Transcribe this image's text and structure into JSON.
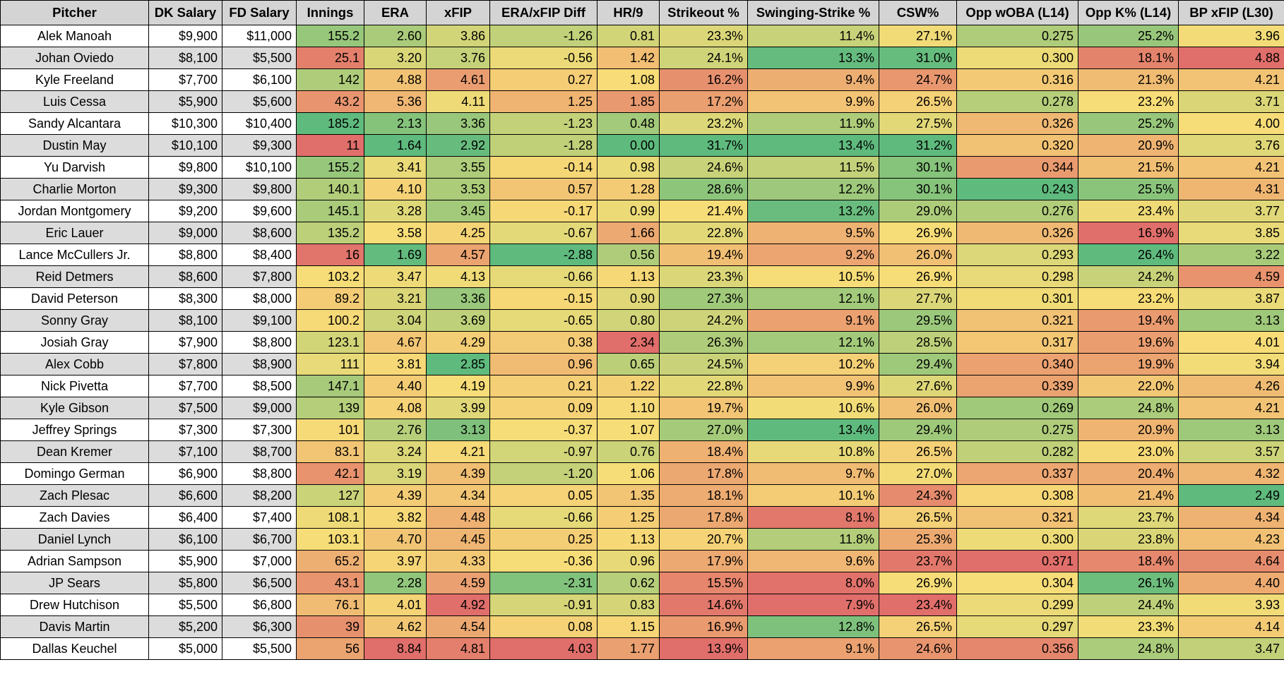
{
  "headers": [
    "Pitcher",
    "DK Salary",
    "FD Salary",
    "Innings",
    "ERA",
    "xFIP",
    "ERA/xFIP Diff",
    "HR/9",
    "Strikeout %",
    "Swinging-Strike %",
    "CSW%",
    "Opp wOBA (L14)",
    "Opp K% (L14)",
    "BP xFIP (L30)"
  ],
  "rows": [
    [
      "Alek Manoah",
      "$9,900",
      "$11,000",
      "155.2",
      "2.60",
      "3.86",
      "-1.26",
      "0.81",
      "23.3%",
      "11.4%",
      "27.1%",
      "0.275",
      "25.2%",
      "3.96"
    ],
    [
      "Johan Oviedo",
      "$8,100",
      "$5,500",
      "25.1",
      "3.20",
      "3.76",
      "-0.56",
      "1.42",
      "24.1%",
      "13.3%",
      "31.0%",
      "0.300",
      "18.1%",
      "4.88"
    ],
    [
      "Kyle Freeland",
      "$7,700",
      "$6,100",
      "142",
      "4.88",
      "4.61",
      "0.27",
      "1.08",
      "16.2%",
      "9.4%",
      "24.7%",
      "0.316",
      "21.3%",
      "4.21"
    ],
    [
      "Luis Cessa",
      "$5,900",
      "$5,600",
      "43.2",
      "5.36",
      "4.11",
      "1.25",
      "1.85",
      "17.2%",
      "9.9%",
      "26.5%",
      "0.278",
      "23.2%",
      "3.71"
    ],
    [
      "Sandy Alcantara",
      "$10,300",
      "$10,400",
      "185.2",
      "2.13",
      "3.36",
      "-1.23",
      "0.48",
      "23.2%",
      "11.9%",
      "27.5%",
      "0.326",
      "25.2%",
      "4.00"
    ],
    [
      "Dustin May",
      "$10,100",
      "$9,300",
      "11",
      "1.64",
      "2.92",
      "-1.28",
      "0.00",
      "31.7%",
      "13.4%",
      "31.2%",
      "0.320",
      "20.9%",
      "3.76"
    ],
    [
      "Yu Darvish",
      "$9,800",
      "$10,100",
      "155.2",
      "3.41",
      "3.55",
      "-0.14",
      "0.98",
      "24.6%",
      "11.5%",
      "30.1%",
      "0.344",
      "21.5%",
      "4.21"
    ],
    [
      "Charlie Morton",
      "$9,300",
      "$9,800",
      "140.1",
      "4.10",
      "3.53",
      "0.57",
      "1.28",
      "28.6%",
      "12.2%",
      "30.1%",
      "0.243",
      "25.5%",
      "4.31"
    ],
    [
      "Jordan Montgomery",
      "$9,200",
      "$9,600",
      "145.1",
      "3.28",
      "3.45",
      "-0.17",
      "0.99",
      "21.4%",
      "13.2%",
      "29.0%",
      "0.276",
      "23.4%",
      "3.77"
    ],
    [
      "Eric Lauer",
      "$9,000",
      "$8,600",
      "135.2",
      "3.58",
      "4.25",
      "-0.67",
      "1.66",
      "22.8%",
      "9.5%",
      "26.9%",
      "0.326",
      "16.9%",
      "3.85"
    ],
    [
      "Lance McCullers Jr.",
      "$8,800",
      "$8,400",
      "16",
      "1.69",
      "4.57",
      "-2.88",
      "0.56",
      "19.4%",
      "9.2%",
      "26.0%",
      "0.293",
      "26.4%",
      "3.22"
    ],
    [
      "Reid Detmers",
      "$8,600",
      "$7,800",
      "103.2",
      "3.47",
      "4.13",
      "-0.66",
      "1.13",
      "23.3%",
      "10.5%",
      "26.9%",
      "0.298",
      "24.2%",
      "4.59"
    ],
    [
      "David Peterson",
      "$8,300",
      "$8,000",
      "89.2",
      "3.21",
      "3.36",
      "-0.15",
      "0.90",
      "27.3%",
      "12.1%",
      "27.7%",
      "0.301",
      "23.2%",
      "3.87"
    ],
    [
      "Sonny Gray",
      "$8,100",
      "$9,100",
      "100.2",
      "3.04",
      "3.69",
      "-0.65",
      "0.80",
      "24.2%",
      "9.1%",
      "29.5%",
      "0.321",
      "19.4%",
      "3.13"
    ],
    [
      "Josiah Gray",
      "$7,900",
      "$8,800",
      "123.1",
      "4.67",
      "4.29",
      "0.38",
      "2.34",
      "26.3%",
      "12.1%",
      "28.5%",
      "0.317",
      "19.6%",
      "4.01"
    ],
    [
      "Alex Cobb",
      "$7,800",
      "$8,900",
      "111",
      "3.81",
      "2.85",
      "0.96",
      "0.65",
      "24.5%",
      "10.2%",
      "29.4%",
      "0.340",
      "19.9%",
      "3.94"
    ],
    [
      "Nick Pivetta",
      "$7,700",
      "$8,500",
      "147.1",
      "4.40",
      "4.19",
      "0.21",
      "1.22",
      "22.8%",
      "9.9%",
      "27.6%",
      "0.339",
      "22.0%",
      "4.26"
    ],
    [
      "Kyle Gibson",
      "$7,500",
      "$9,000",
      "139",
      "4.08",
      "3.99",
      "0.09",
      "1.10",
      "19.7%",
      "10.6%",
      "26.0%",
      "0.269",
      "24.8%",
      "4.21"
    ],
    [
      "Jeffrey Springs",
      "$7,300",
      "$7,300",
      "101",
      "2.76",
      "3.13",
      "-0.37",
      "1.07",
      "27.0%",
      "13.4%",
      "29.4%",
      "0.275",
      "20.9%",
      "3.13"
    ],
    [
      "Dean Kremer",
      "$7,100",
      "$8,700",
      "83.1",
      "3.24",
      "4.21",
      "-0.97",
      "0.76",
      "18.4%",
      "10.8%",
      "26.5%",
      "0.282",
      "23.0%",
      "3.57"
    ],
    [
      "Domingo German",
      "$6,900",
      "$8,800",
      "42.1",
      "3.19",
      "4.39",
      "-1.20",
      "1.06",
      "17.8%",
      "9.7%",
      "27.0%",
      "0.337",
      "20.4%",
      "4.32"
    ],
    [
      "Zach Plesac",
      "$6,600",
      "$8,200",
      "127",
      "4.39",
      "4.34",
      "0.05",
      "1.35",
      "18.1%",
      "10.1%",
      "24.3%",
      "0.308",
      "21.4%",
      "2.49"
    ],
    [
      "Zach Davies",
      "$6,400",
      "$7,400",
      "108.1",
      "3.82",
      "4.48",
      "-0.66",
      "1.25",
      "17.8%",
      "8.1%",
      "26.5%",
      "0.321",
      "23.7%",
      "4.34"
    ],
    [
      "Daniel Lynch",
      "$6,100",
      "$6,700",
      "103.1",
      "4.70",
      "4.45",
      "0.25",
      "1.13",
      "20.7%",
      "11.8%",
      "25.3%",
      "0.300",
      "23.8%",
      "4.23"
    ],
    [
      "Adrian Sampson",
      "$5,900",
      "$7,000",
      "65.2",
      "3.97",
      "4.33",
      "-0.36",
      "0.96",
      "17.9%",
      "9.6%",
      "23.7%",
      "0.371",
      "18.4%",
      "4.64"
    ],
    [
      "JP Sears",
      "$5,800",
      "$6,500",
      "43.1",
      "2.28",
      "4.59",
      "-2.31",
      "0.62",
      "15.5%",
      "8.0%",
      "26.9%",
      "0.304",
      "26.1%",
      "4.40"
    ],
    [
      "Drew Hutchison",
      "$5,500",
      "$6,800",
      "76.1",
      "4.01",
      "4.92",
      "-0.91",
      "0.83",
      "14.6%",
      "7.9%",
      "23.4%",
      "0.299",
      "24.4%",
      "3.93"
    ],
    [
      "Davis Martin",
      "$5,200",
      "$6,300",
      "39",
      "4.62",
      "4.54",
      "0.08",
      "1.15",
      "16.9%",
      "12.8%",
      "26.5%",
      "0.297",
      "23.3%",
      "4.14"
    ],
    [
      "Dallas Keuchel",
      "$5,000",
      "$5,500",
      "56",
      "8.84",
      "4.81",
      "4.03",
      "1.77",
      "13.9%",
      "9.1%",
      "24.6%",
      "0.356",
      "24.8%",
      "3.47"
    ]
  ],
  "color_scale": {
    "green": "#5fba7d",
    "yellow": "#f7dd77",
    "red": "#e06e6a"
  },
  "higher_is_better": [
    null,
    null,
    null,
    true,
    false,
    false,
    false,
    false,
    true,
    true,
    true,
    false,
    true,
    false
  ]
}
